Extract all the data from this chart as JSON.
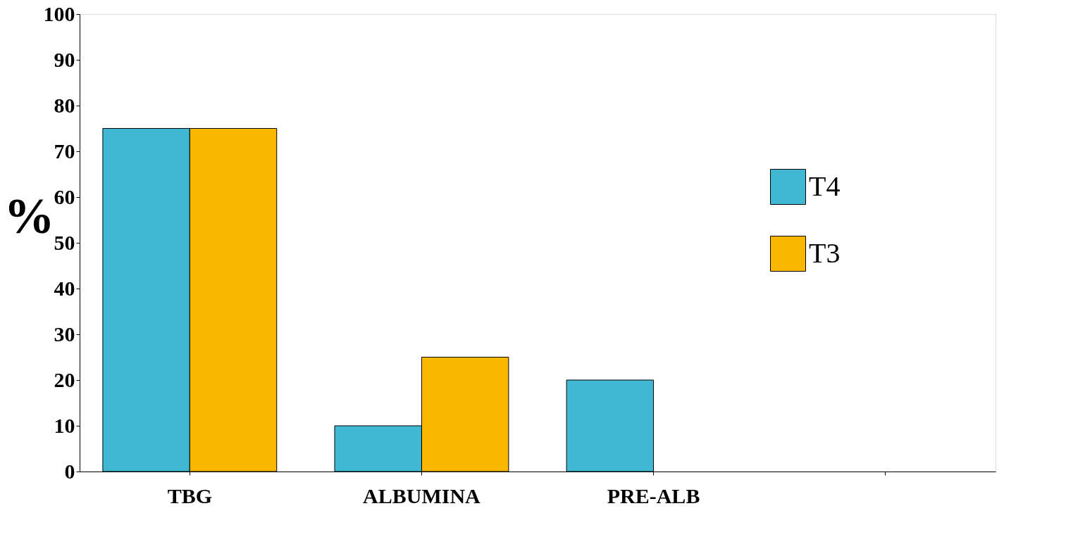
{
  "chart_data": {
    "type": "bar",
    "ylabel": "%",
    "categories": [
      "TBG",
      "ALBUMINA",
      "PRE-ALB",
      null
    ],
    "series": [
      {
        "name": "T4",
        "color": "#41b8d3",
        "values": [
          75,
          10,
          20,
          null
        ]
      },
      {
        "name": "T3",
        "color": "#f9b700",
        "values": [
          75,
          25,
          null,
          null
        ]
      }
    ],
    "ylim": [
      0,
      100
    ],
    "yticks": [
      0,
      10,
      20,
      30,
      40,
      50,
      60,
      70,
      80,
      90,
      100
    ],
    "grid": false,
    "legend": "top right"
  }
}
